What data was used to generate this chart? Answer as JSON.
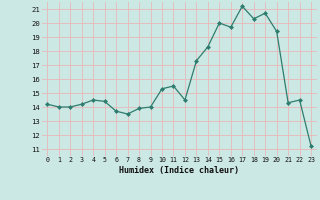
{
  "x": [
    0,
    1,
    2,
    3,
    4,
    5,
    6,
    7,
    8,
    9,
    10,
    11,
    12,
    13,
    14,
    15,
    16,
    17,
    18,
    19,
    20,
    21,
    22,
    23
  ],
  "y": [
    14.2,
    14.0,
    14.0,
    14.2,
    14.5,
    14.4,
    13.7,
    13.5,
    13.9,
    14.0,
    15.3,
    15.5,
    14.5,
    17.3,
    18.3,
    20.0,
    19.7,
    21.2,
    20.3,
    20.7,
    19.4,
    14.3,
    14.5,
    11.2
  ],
  "xlabel": "Humidex (Indice chaleur)",
  "line_color": "#2e7d6e",
  "marker_color": "#2e7d6e",
  "bg_color": "#cce8e4",
  "grid_color": "#e8b8b8",
  "ylim": [
    10.5,
    21.5
  ],
  "xlim": [
    -0.5,
    23.5
  ],
  "yticks": [
    11,
    12,
    13,
    14,
    15,
    16,
    17,
    18,
    19,
    20,
    21
  ],
  "xticks": [
    0,
    1,
    2,
    3,
    4,
    5,
    6,
    7,
    8,
    9,
    10,
    11,
    12,
    13,
    14,
    15,
    16,
    17,
    18,
    19,
    20,
    21,
    22,
    23
  ]
}
